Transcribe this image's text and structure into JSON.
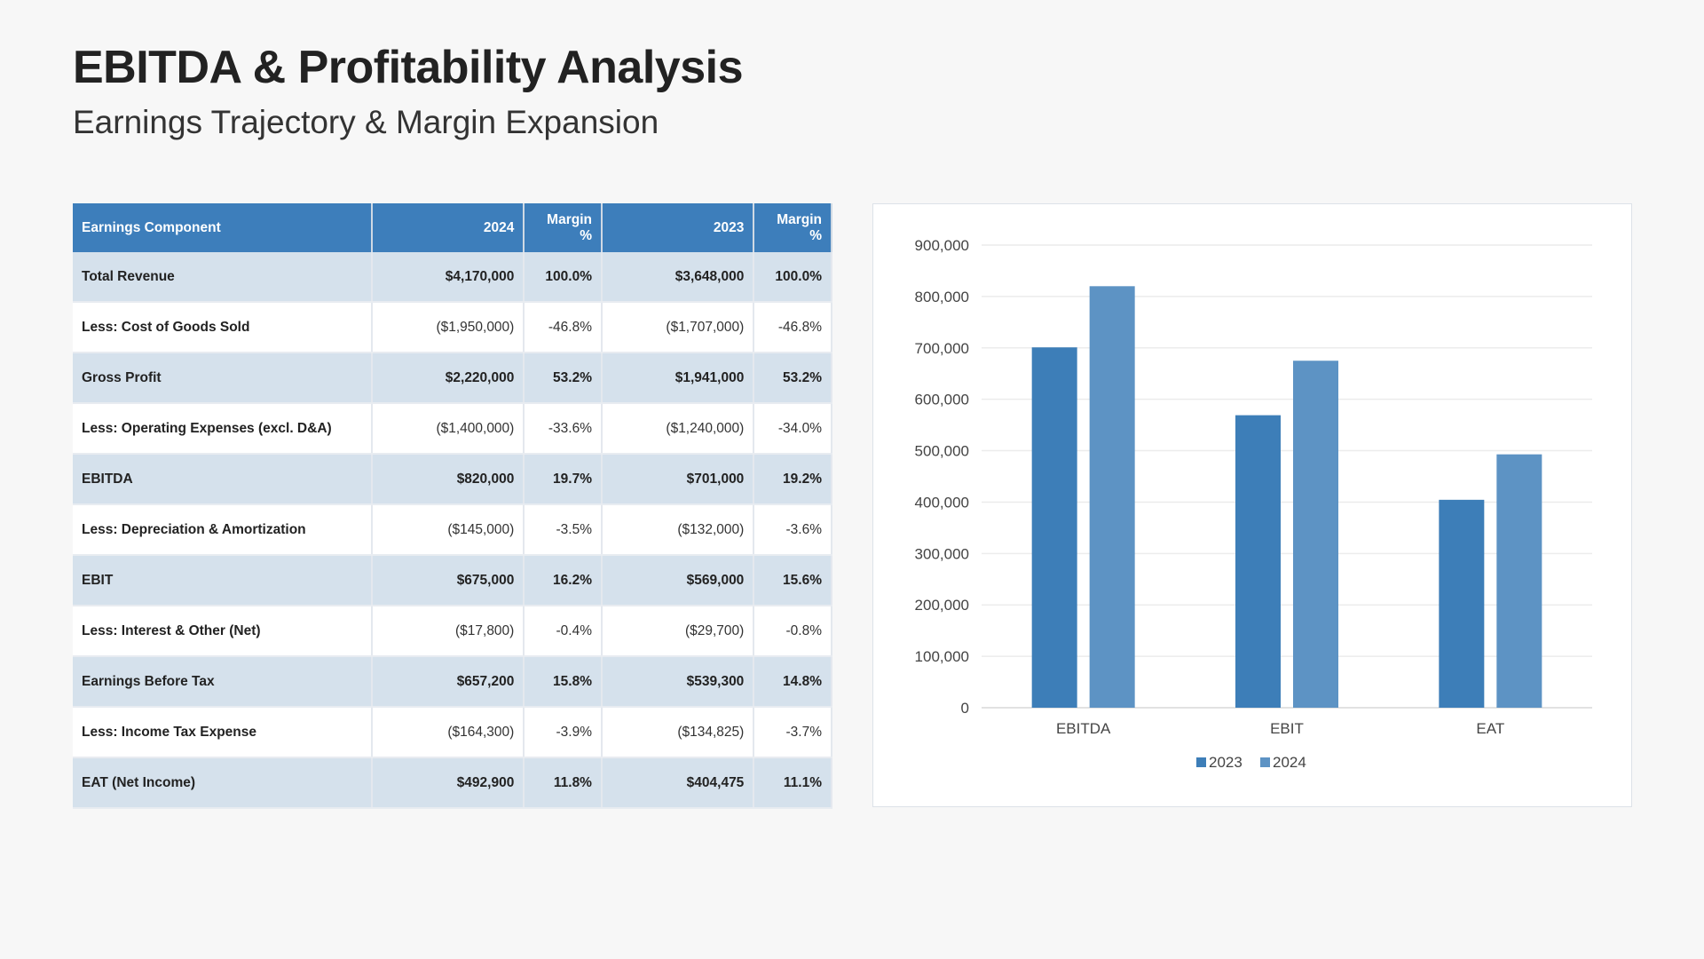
{
  "header": {
    "title": "EBITDA & Profitability Analysis",
    "subtitle": "Earnings Trajectory & Margin Expansion"
  },
  "table": {
    "columns": [
      "Earnings Component",
      "2024",
      "Margin %",
      "2023",
      "Margin %"
    ],
    "rows": [
      {
        "label": "Total Revenue",
        "v2024": "$4,170,000",
        "m2024": "100.0%",
        "v2023": "$3,648,000",
        "m2023": "100.0%",
        "highlight": true
      },
      {
        "label": "Less: Cost of Goods Sold",
        "v2024": "($1,950,000)",
        "m2024": "-46.8%",
        "v2023": "($1,707,000)",
        "m2023": "-46.8%",
        "highlight": false
      },
      {
        "label": "Gross Profit",
        "v2024": "$2,220,000",
        "m2024": "53.2%",
        "v2023": "$1,941,000",
        "m2023": "53.2%",
        "highlight": true
      },
      {
        "label": "Less: Operating Expenses (excl. D&A)",
        "v2024": "($1,400,000)",
        "m2024": "-33.6%",
        "v2023": "($1,240,000)",
        "m2023": "-34.0%",
        "highlight": false
      },
      {
        "label": "EBITDA",
        "v2024": "$820,000",
        "m2024": "19.7%",
        "v2023": "$701,000",
        "m2023": "19.2%",
        "highlight": true
      },
      {
        "label": "Less: Depreciation & Amortization",
        "v2024": "($145,000)",
        "m2024": "-3.5%",
        "v2023": "($132,000)",
        "m2023": "-3.6%",
        "highlight": false
      },
      {
        "label": "EBIT",
        "v2024": "$675,000",
        "m2024": "16.2%",
        "v2023": "$569,000",
        "m2023": "15.6%",
        "highlight": true
      },
      {
        "label": "Less: Interest & Other (Net)",
        "v2024": "($17,800)",
        "m2024": "-0.4%",
        "v2023": "($29,700)",
        "m2023": "-0.8%",
        "highlight": false
      },
      {
        "label": "Earnings Before Tax",
        "v2024": "$657,200",
        "m2024": "15.8%",
        "v2023": "$539,300",
        "m2023": "14.8%",
        "highlight": true
      },
      {
        "label": "Less: Income Tax Expense",
        "v2024": "($164,300)",
        "m2024": "-3.9%",
        "v2023": "($134,825)",
        "m2023": "-3.7%",
        "highlight": false
      },
      {
        "label": "EAT (Net Income)",
        "v2024": "$492,900",
        "m2024": "11.8%",
        "v2023": "$404,475",
        "m2023": "11.1%",
        "highlight": true
      }
    ]
  },
  "chart_data": {
    "type": "bar",
    "categories": [
      "EBITDA",
      "EBIT",
      "EAT"
    ],
    "series": [
      {
        "name": "2023",
        "values": [
          701000,
          569000,
          404475
        ],
        "color": "#3d7eb8"
      },
      {
        "name": "2024",
        "values": [
          820000,
          675000,
          492900
        ],
        "color": "#5d93c4"
      }
    ],
    "ylim": [
      0,
      900000
    ],
    "yticks": [
      0,
      100000,
      200000,
      300000,
      400000,
      500000,
      600000,
      700000,
      800000,
      900000
    ],
    "ytick_labels": [
      "0",
      "100,000",
      "200,000",
      "300,000",
      "400,000",
      "500,000",
      "600,000",
      "700,000",
      "800,000",
      "900,000"
    ],
    "grid": true,
    "legend": "bottom",
    "title": "",
    "xlabel": "",
    "ylabel": ""
  }
}
